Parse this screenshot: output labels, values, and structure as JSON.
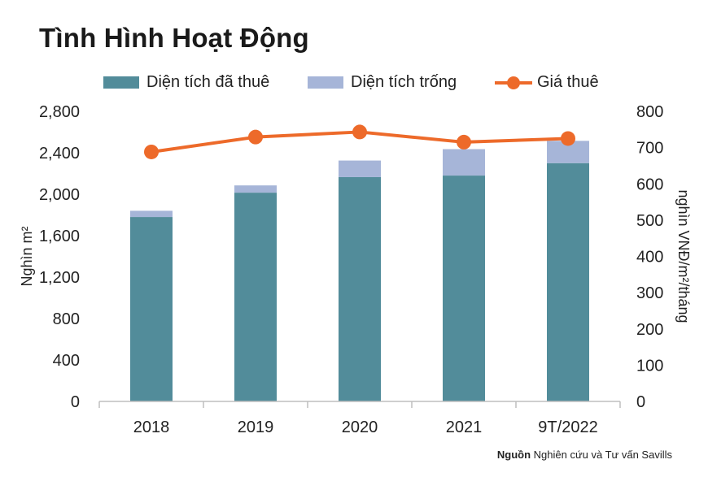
{
  "title": "Tình Hình Hoạt Động",
  "source": {
    "label": "Nguồn",
    "text": "Nghiên cứu và Tư vấn Savills"
  },
  "colors": {
    "leased": "#528c9a",
    "vacant": "#a6b5d8",
    "rent": "#ed6a2a",
    "axis": "#bfbfbf",
    "text": "#222222"
  },
  "chart_data": {
    "type": "bar",
    "categories": [
      "2018",
      "2019",
      "2020",
      "2021",
      "9T/2022"
    ],
    "series": [
      {
        "name": "Diện tích đã thuê",
        "type": "bar",
        "stack": "area",
        "axis": "left",
        "values": [
          1780,
          2015,
          2165,
          2180,
          2300
        ]
      },
      {
        "name": "Diện tích trống",
        "type": "bar",
        "stack": "area",
        "axis": "left",
        "values": [
          60,
          70,
          160,
          255,
          215
        ]
      },
      {
        "name": "Giá thuê",
        "type": "line",
        "axis": "right",
        "values": [
          688,
          729,
          743,
          715,
          725
        ]
      }
    ],
    "ylabel": "Nghìn m²",
    "y2label": "nghìn VNĐ/m²/tháng",
    "ylim": [
      0,
      2800
    ],
    "y2lim": [
      0,
      800
    ],
    "yticks": [
      "0",
      "400",
      "800",
      "1,200",
      "1,600",
      "2,000",
      "2,400",
      "2,800"
    ],
    "y2ticks": [
      "0",
      "100",
      "200",
      "300",
      "400",
      "500",
      "600",
      "700",
      "800"
    ],
    "grid": true,
    "legend": "top"
  }
}
